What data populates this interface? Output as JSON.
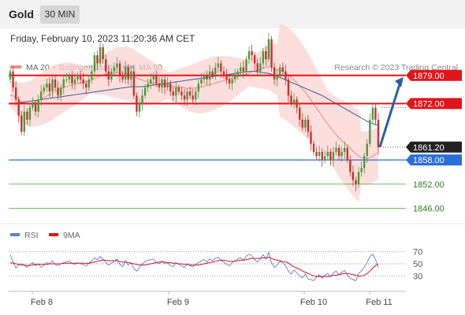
{
  "header": {
    "instrument": "Gold",
    "timeframe": "30 MIN"
  },
  "timestamp": "Friday, February 10, 2023 11:20:36 AM CET",
  "legend": {
    "ma20_bb": "MA 20 + Bollinger Bands",
    "ma50": "MA 50",
    "credit": "Research © 2023 Trading Central",
    "rsi": "RSI",
    "ma9": "9MA"
  },
  "colors": {
    "resistance": "#e0151b",
    "support_blue": "#2b6fd6",
    "support_green": "#6bbf5a",
    "candle_up": "#4a9a3d",
    "candle_down": "#c4332d",
    "bollinger_fill": "#fbd3d0",
    "ma20": "#e88a82",
    "ma50": "#3d5a9e",
    "current_price_bg": "#222222",
    "arrow": "#2b5ea8",
    "rsi_line": "#5b7fd9",
    "rsi_ma": "#e0151b"
  },
  "chart_data": [
    {
      "type": "candlestick",
      "ylim": [
        1841,
        1886
      ],
      "levels": [
        {
          "value": 1879.0,
          "label": "1879.00",
          "kind": "resistance"
        },
        {
          "value": 1872.0,
          "label": "1872.00",
          "kind": "resistance"
        },
        {
          "value": 1858.0,
          "label": "1858.00",
          "kind": "support"
        },
        {
          "value": 1852.0,
          "label": "1852.00",
          "kind": "support-minor"
        },
        {
          "value": 1846.0,
          "label": "1846.00",
          "kind": "support-minor"
        }
      ],
      "current_price": {
        "value": 1861.2,
        "label": "1861.20"
      },
      "x_ticks": [
        "Feb 8",
        "Feb 9",
        "Feb 10",
        "Feb 11"
      ],
      "close": [
        1880,
        1876,
        1873,
        1869,
        1865,
        1870,
        1868,
        1871,
        1872,
        1870,
        1873,
        1875,
        1876,
        1877,
        1875,
        1878,
        1876,
        1874,
        1876,
        1878,
        1878,
        1879,
        1877,
        1878,
        1879,
        1878,
        1877,
        1876,
        1878,
        1880,
        1884,
        1882,
        1886,
        1883,
        1880,
        1878,
        1880,
        1881,
        1882,
        1879,
        1878,
        1881,
        1878,
        1880,
        1874,
        1870,
        1872,
        1874,
        1876,
        1877,
        1878,
        1879,
        1877,
        1876,
        1878,
        1876,
        1877,
        1875,
        1874,
        1876,
        1875,
        1874,
        1873,
        1875,
        1874,
        1873,
        1875,
        1877,
        1878,
        1879,
        1878,
        1880,
        1879,
        1881,
        1882,
        1880,
        1879,
        1878,
        1877,
        1878,
        1879,
        1880,
        1881,
        1880,
        1883,
        1885,
        1884,
        1882,
        1880,
        1882,
        1885,
        1883,
        1888,
        1881,
        1878,
        1879,
        1881,
        1880,
        1878,
        1874,
        1872,
        1873,
        1871,
        1868,
        1866,
        1868,
        1865,
        1862,
        1860,
        1859,
        1860,
        1858,
        1859,
        1860,
        1858,
        1860,
        1861,
        1859,
        1860,
        1861,
        1858,
        1855,
        1853,
        1852,
        1855,
        1856,
        1859,
        1862,
        1868,
        1871,
        1868,
        1861.2
      ],
      "ma20": [
        1874,
        1874,
        1873.5,
        1873,
        1872.5,
        1872.2,
        1872,
        1872,
        1872.2,
        1872.5,
        1872.8,
        1873.1,
        1873.5,
        1873.9,
        1874.2,
        1874.6,
        1875,
        1875.3,
        1875.6,
        1876,
        1876.2,
        1876.4,
        1876.6,
        1876.8,
        1877,
        1877.1,
        1877.2,
        1877.4,
        1877.6,
        1877.9,
        1878.2,
        1878.5,
        1878.9,
        1879.1,
        1879.3,
        1879.4,
        1879.5,
        1879.6,
        1879.7,
        1879.6,
        1879.5,
        1879.5,
        1879.3,
        1879.1,
        1878.8,
        1878.4,
        1878.1,
        1877.8,
        1877.6,
        1877.4,
        1877.2,
        1877,
        1876.9,
        1876.8,
        1876.7,
        1876.6,
        1876.5,
        1876.4,
        1876.3,
        1876.2,
        1876.1,
        1876,
        1875.9,
        1875.8,
        1875.8,
        1875.8,
        1875.9,
        1876,
        1876.1,
        1876.3,
        1876.5,
        1876.7,
        1876.9,
        1877.1,
        1877.3,
        1877.5,
        1877.7,
        1877.9,
        1878.1,
        1878.3,
        1878.5,
        1878.7,
        1878.9,
        1879.1,
        1879.3,
        1879.6,
        1879.9,
        1880.1,
        1880.3,
        1880.5,
        1880.8,
        1881,
        1881.2,
        1881,
        1880.7,
        1880.4,
        1880.2,
        1880,
        1879.6,
        1879.1,
        1878.5,
        1877.9,
        1877.2,
        1876.4,
        1875.6,
        1874.8,
        1873.9,
        1872.9,
        1871.9,
        1870.9,
        1869.9,
        1868.9,
        1867.9,
        1866.9,
        1866,
        1865.1,
        1864.3,
        1863.5,
        1862.8,
        1862.2,
        1861.6,
        1860.9,
        1860.2,
        1859.5,
        1859,
        1858.6,
        1858.4,
        1858.4,
        1858.6,
        1859,
        1859.4,
        1859.7
      ],
      "ma50": [
        1872,
        1872,
        1872.1,
        1872.2,
        1872.3,
        1872.4,
        1872.5,
        1872.6,
        1872.7,
        1872.8,
        1872.9,
        1873,
        1873.1,
        1873.2,
        1873.3,
        1873.4,
        1873.5,
        1873.6,
        1873.7,
        1873.8,
        1873.9,
        1874,
        1874.1,
        1874.2,
        1874.3,
        1874.4,
        1874.5,
        1874.6,
        1874.7,
        1874.8,
        1874.9,
        1875,
        1875.1,
        1875.2,
        1875.3,
        1875.4,
        1875.5,
        1875.6,
        1875.7,
        1875.8,
        1875.9,
        1876,
        1876.1,
        1876.2,
        1876.2,
        1876.2,
        1876.2,
        1876.2,
        1876.3,
        1876.4,
        1876.5,
        1876.6,
        1876.7,
        1876.8,
        1876.9,
        1877,
        1877.1,
        1877.2,
        1877.3,
        1877.4,
        1877.5,
        1877.6,
        1877.7,
        1877.8,
        1877.9,
        1878,
        1878.1,
        1878.2,
        1878.3,
        1878.4,
        1878.5,
        1878.6,
        1878.7,
        1878.8,
        1878.9,
        1879,
        1879.1,
        1879.2,
        1879.3,
        1879.4,
        1879.5,
        1879.6,
        1879.7,
        1879.8,
        1879.9,
        1880,
        1880,
        1880,
        1879.9,
        1879.8,
        1879.7,
        1879.6,
        1879.5,
        1879.3,
        1879,
        1878.8,
        1878.5,
        1878.2,
        1877.9,
        1877.6,
        1877.3,
        1877,
        1876.7,
        1876.4,
        1876.1,
        1875.8,
        1875.5,
        1875.2,
        1874.9,
        1874.6,
        1874.3,
        1874,
        1873.6,
        1873.2,
        1872.8,
        1872.4,
        1872,
        1871.6,
        1871.2,
        1870.8,
        1870.4,
        1870,
        1869.6,
        1869.2,
        1868.8,
        1868.4,
        1868,
        1867.6,
        1867.3,
        1867,
        1866.8,
        1866.6
      ]
    },
    {
      "type": "line",
      "indicator": "RSI",
      "ylim": [
        20,
        80
      ],
      "y_ticks": [
        70,
        50,
        30
      ],
      "x_ticks": [
        "Feb 8",
        "Feb 9",
        "Feb 10",
        "Feb 11"
      ],
      "rsi": [
        65,
        54,
        43,
        48,
        50,
        47,
        44,
        49,
        52,
        47,
        50,
        44,
        48,
        52,
        50,
        55,
        49,
        47,
        50,
        52,
        53,
        55,
        51,
        49,
        52,
        50,
        49,
        46,
        51,
        55,
        60,
        57,
        62,
        58,
        52,
        48,
        51,
        54,
        58,
        49,
        45,
        55,
        48,
        52,
        42,
        38,
        44,
        50,
        54,
        56,
        57,
        58,
        52,
        50,
        55,
        50,
        52,
        47,
        45,
        52,
        49,
        47,
        44,
        50,
        47,
        45,
        49,
        52,
        55,
        57,
        53,
        58,
        55,
        59,
        61,
        56,
        53,
        49,
        47,
        52,
        55,
        58,
        60,
        56,
        63,
        66,
        63,
        57,
        53,
        58,
        65,
        58,
        69,
        52,
        44,
        48,
        54,
        52,
        47,
        38,
        33,
        40,
        35,
        30,
        27,
        33,
        25,
        24,
        22,
        28,
        32,
        26,
        31,
        34,
        28,
        35,
        38,
        32,
        36,
        39,
        31,
        26,
        24,
        22,
        34,
        38,
        45,
        52,
        62,
        66,
        57,
        44
      ],
      "ma9": [
        52,
        51,
        50,
        49,
        48,
        48,
        47,
        47,
        48,
        49,
        49,
        49,
        49,
        49,
        50,
        50,
        50,
        50,
        50,
        51,
        51,
        51,
        51,
        51,
        51,
        51,
        51,
        51,
        51,
        52,
        53,
        54,
        55,
        56,
        56,
        55,
        55,
        55,
        55,
        54,
        53,
        53,
        52,
        51,
        50,
        49,
        48,
        48,
        48,
        49,
        50,
        51,
        52,
        53,
        53,
        53,
        52,
        52,
        51,
        51,
        50,
        50,
        49,
        49,
        48,
        48,
        48,
        48,
        49,
        50,
        51,
        52,
        53,
        54,
        55,
        56,
        56,
        55,
        54,
        54,
        54,
        55,
        56,
        56,
        57,
        58,
        59,
        59,
        59,
        59,
        60,
        60,
        61,
        59,
        57,
        56,
        55,
        54,
        53,
        51,
        48,
        45,
        43,
        41,
        38,
        36,
        34,
        32,
        30,
        29,
        29,
        29,
        29,
        29,
        30,
        31,
        31,
        32,
        33,
        34,
        34,
        33,
        32,
        31,
        30,
        30,
        31,
        34,
        38,
        43,
        47,
        50
      ]
    }
  ]
}
